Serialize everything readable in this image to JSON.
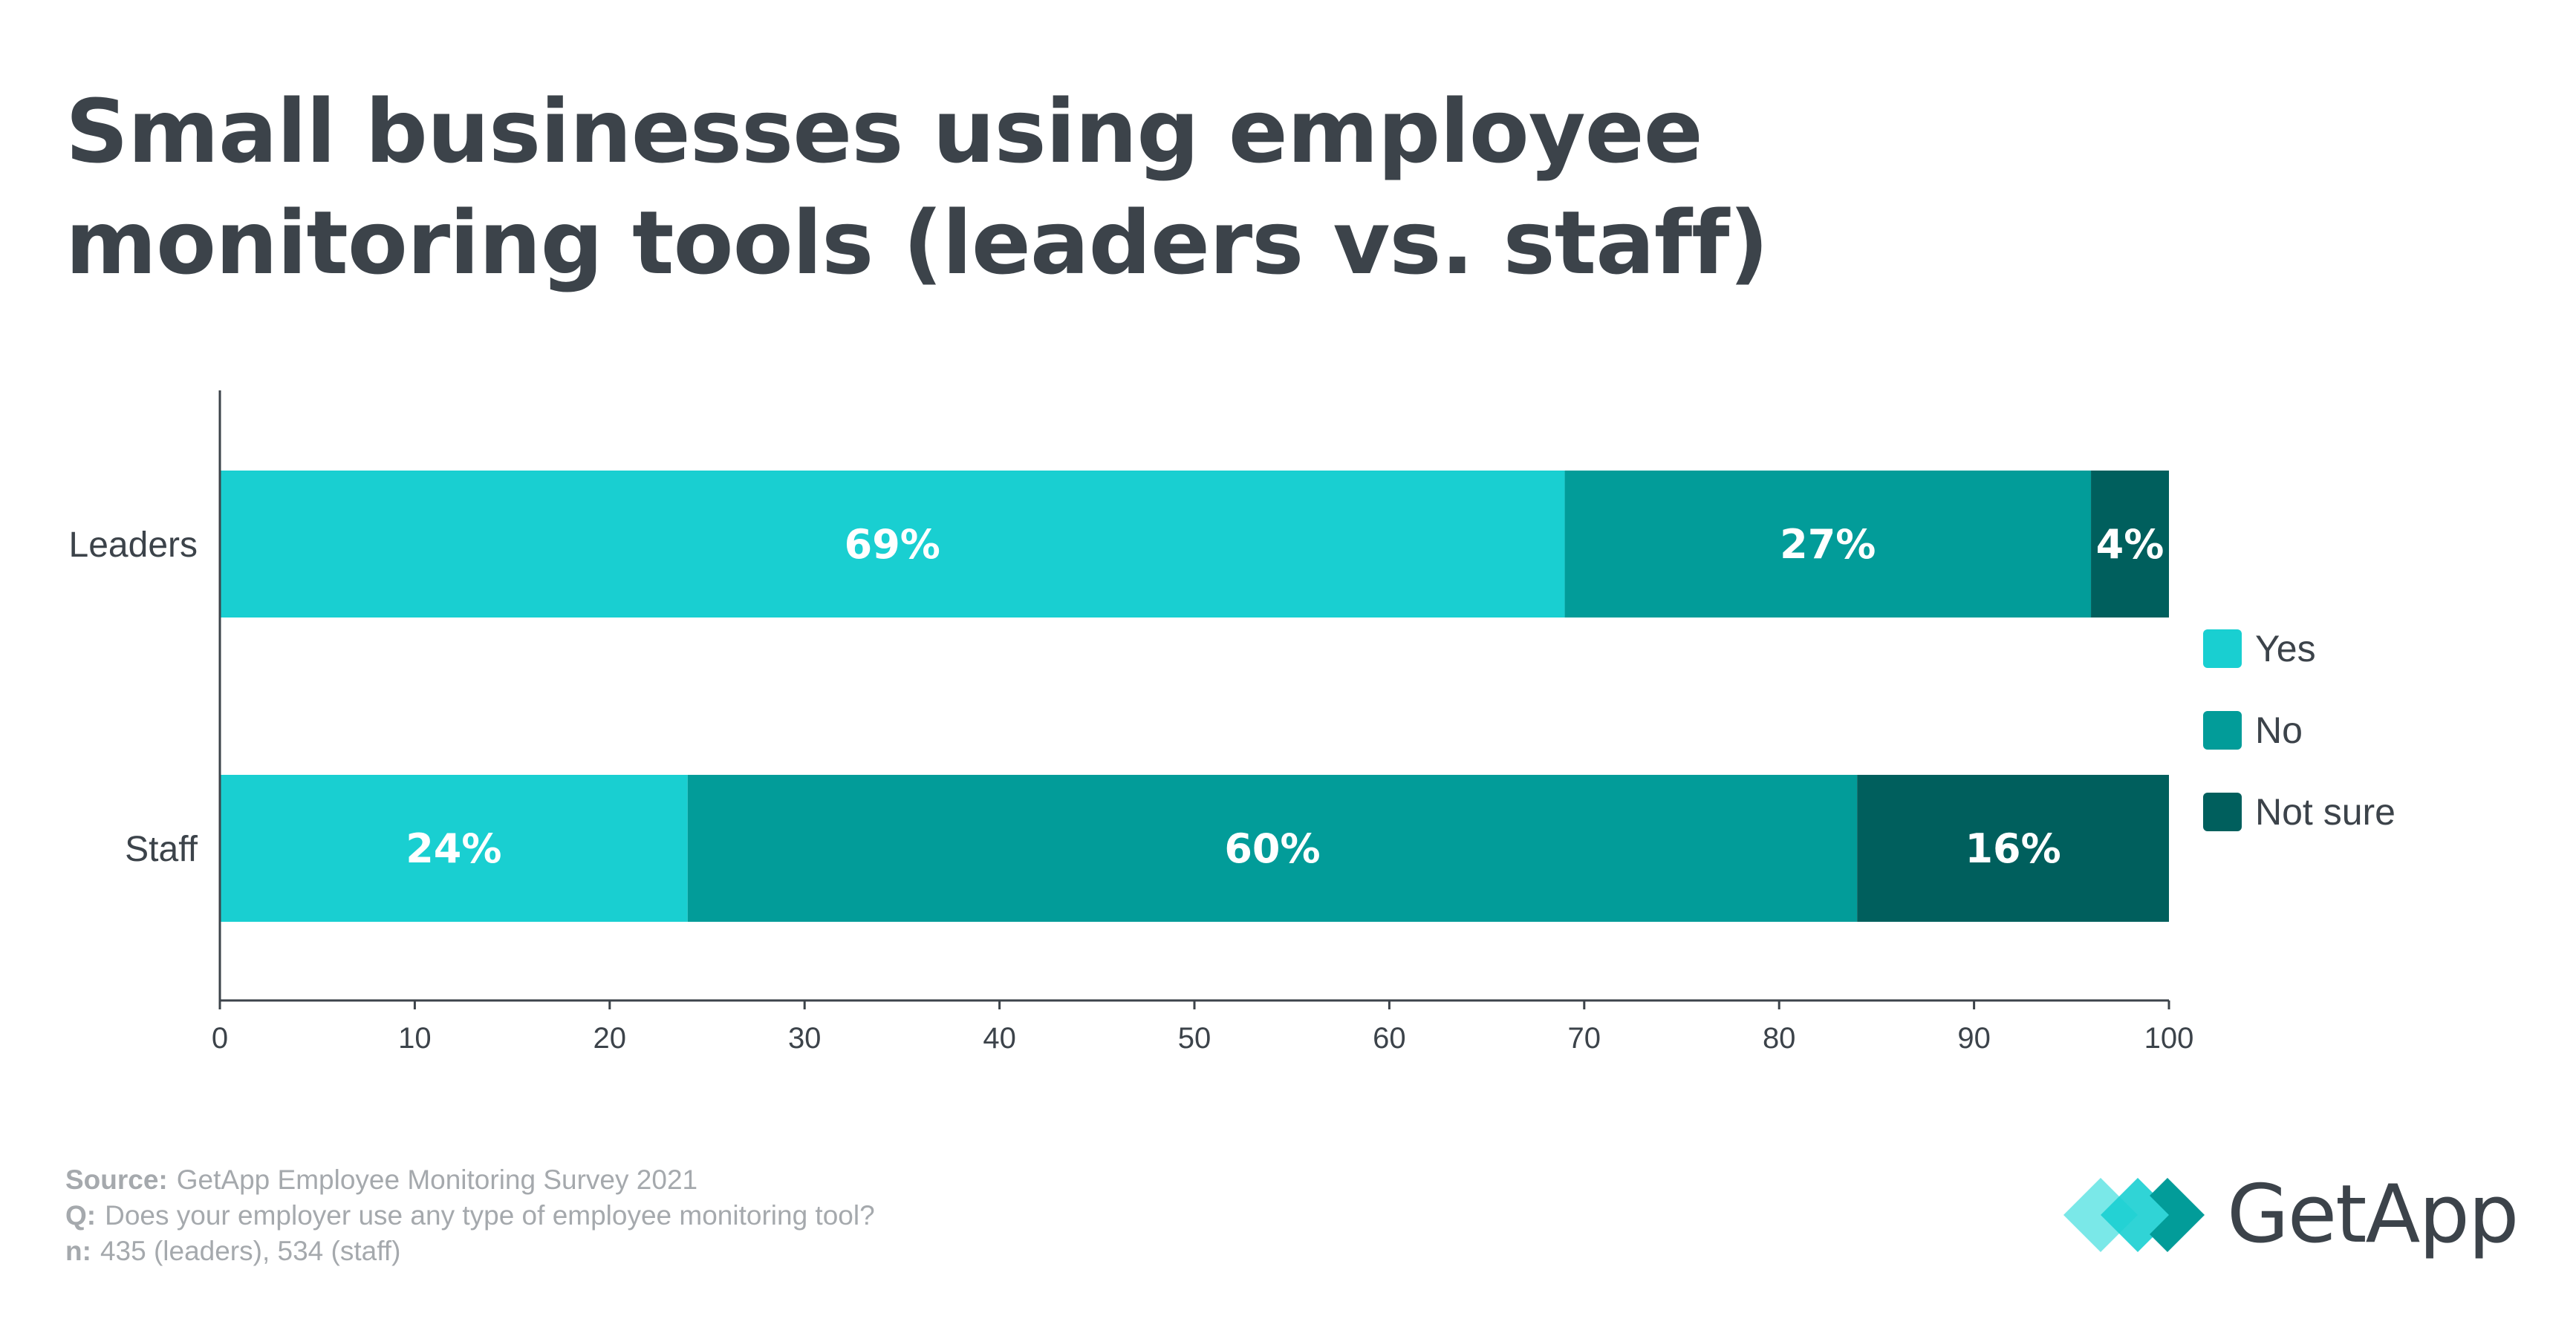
{
  "title_lines": [
    "Small businesses using employee",
    "monitoring tools (leaders vs. staff)"
  ],
  "chart_data": {
    "type": "bar",
    "orientation": "horizontal",
    "stacked": true,
    "categories": [
      "Leaders",
      "Staff"
    ],
    "series": [
      {
        "name": "Yes",
        "values": [
          69,
          24
        ],
        "color": "#19cfd1"
      },
      {
        "name": "No",
        "values": [
          27,
          60
        ],
        "color": "#029c99"
      },
      {
        "name": "Not sure",
        "values": [
          4,
          16
        ],
        "color": "#005f5d"
      }
    ],
    "value_labels": [
      [
        "69%",
        "24%"
      ],
      [
        "27%",
        "60%"
      ],
      [
        "4%",
        "16%"
      ]
    ],
    "x_ticks": [
      "0",
      "10",
      "20",
      "30",
      "40",
      "50",
      "60",
      "70",
      "80",
      "90",
      "100"
    ],
    "xlim": [
      0,
      100
    ],
    "grid": false,
    "legend_position": "right"
  },
  "legend": [
    "Yes",
    "No",
    "Not sure"
  ],
  "footer": [
    {
      "key": "Source:",
      "text": "GetApp Employee Monitoring Survey 2021"
    },
    {
      "key": "Q:",
      "text": "Does your employer use any type of employee monitoring tool?"
    },
    {
      "key": "n:",
      "text": "435 (leaders), 534 (staff)"
    }
  ],
  "logo": {
    "text": "GetApp",
    "icon": "getapp-diamond-icon",
    "colors": [
      "#19cfd1",
      "#029c99",
      "#4de0e0"
    ]
  }
}
